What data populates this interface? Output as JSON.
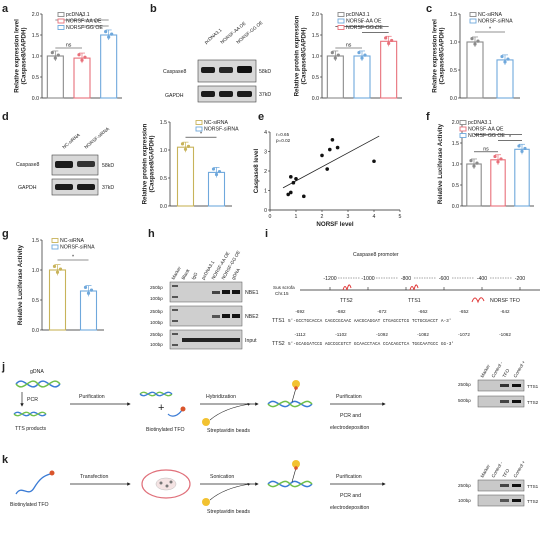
{
  "panels": {
    "a": {
      "letter": "a",
      "ylabel": "Relative expression level\n(Caspase8/GAPDH)",
      "ticks": [
        "0.0",
        "0.5",
        "1.0",
        "1.5",
        "2.0"
      ],
      "legend": [
        "pcDNA3.1",
        "NORSF-AA OE",
        "NORSF-GG OE"
      ],
      "sig": [
        "ns",
        "*",
        "*"
      ]
    },
    "b": {
      "letter": "b",
      "lanes": [
        "pcDNA3.1",
        "NORSF-AA OE",
        "NORSF-GG OE"
      ],
      "bands": [
        "Caspase8",
        "GAPDH"
      ],
      "kd": [
        "58kD",
        "37kD"
      ],
      "ylabel": "Relative protein expression\n(Caspase8/GAPDH)",
      "ticks": [
        "0.0",
        "0.5",
        "1.0",
        "1.5",
        "2.0"
      ],
      "legend": [
        "pcDNA3.1",
        "NORSF-AA OE",
        "NORSF-GG OE"
      ],
      "sig": [
        "ns",
        "*",
        "*"
      ]
    },
    "c": {
      "letter": "c",
      "ylabel": "Relative expression level\n(Caspase8/GAPDH)",
      "ticks": [
        "0.0",
        "0.5",
        "1.0",
        "1.5"
      ],
      "legend": [
        "NC-siRNA",
        "NORSF-siRNA"
      ],
      "sig": [
        "*"
      ]
    },
    "d": {
      "letter": "d",
      "lanes": [
        "NC-siRNA",
        "NORSF-siRNA"
      ],
      "bands": [
        "Caspase8",
        "GAPDH"
      ],
      "kd": [
        "58kD",
        "37kD"
      ],
      "ylabel": "Relative protein expression\n(Caspase8/GAPDH)",
      "ticks": [
        "0.0",
        "0.5",
        "1.0",
        "1.5"
      ],
      "legend": [
        "NC-siRNA",
        "NORSF-siRNA"
      ],
      "sig": [
        "*"
      ]
    },
    "e": {
      "letter": "e",
      "stats": [
        "r=0.65",
        "p=0.02"
      ],
      "xlabel": "NORSF level",
      "ylabel": "Caspase8 level",
      "xticks": [
        "0",
        "1",
        "2",
        "3",
        "4",
        "5"
      ],
      "yticks": [
        "0",
        "1",
        "2",
        "3",
        "4"
      ]
    },
    "f": {
      "letter": "f",
      "ylabel": "Relative Luciferase Activity",
      "ticks": [
        "0.0",
        "0.5",
        "1.0",
        "1.5",
        "2.0"
      ],
      "legend": [
        "pcDNA3.1",
        "NORSF-AA OE",
        "NORSF-GG OE"
      ],
      "sig": [
        "ns",
        "*",
        "*"
      ]
    },
    "g": {
      "letter": "g",
      "ylabel": "Relative Luciferase Activity",
      "ticks": [
        "0.0",
        "0.5",
        "1.0",
        "1.5"
      ],
      "legend": [
        "NC-siRNA",
        "NORSF-siRNA"
      ],
      "sig": [
        "*"
      ]
    },
    "h": {
      "letter": "h",
      "lanes": [
        "Marker",
        "Blank",
        "IgG",
        "pcDNA3.1",
        "NORSF-AA OE",
        "NORSF-GG OE",
        "gDNA"
      ],
      "markers": [
        "250bp",
        "100bp",
        "250bp",
        "100bp",
        "250bp",
        "100bp"
      ],
      "rows": [
        "NBE1",
        "NBE2",
        "Input"
      ]
    },
    "i": {
      "letter": "i",
      "title": "Caspase8 promoter",
      "chrom": "Sus scrofa\nChr.15",
      "scale": [
        "-1200",
        "-1000",
        "-800",
        "-600",
        "-400",
        "-200"
      ],
      "sites": [
        "TTS2",
        "TTS1",
        "NORSF TFO"
      ],
      "seq1_nums": [
        "-692",
        "-682",
        "-672",
        "-662",
        "-652",
        "-642"
      ],
      "seq1_label": "TTS1",
      "seq1": "5'-GCCTGCACCA CAGCCGCAAC AACGCAGGAT CTGAGCCTCG TCTGCGACCT A-3'",
      "seq2_nums": [
        "-1112",
        "-1102",
        "-1092",
        "-1082",
        "-1072",
        "-1062"
      ],
      "seq2_label": "TTS2",
      "seq2": "5'-GCAGGATCCG AGCCGCGTCT GCAACCTACA CCACAGCTCA TGGCAATGCC GG-3'"
    },
    "j": {
      "letter": "j",
      "items": [
        "gDNA",
        "PCR",
        "TTS products",
        "Purification",
        "Biotinylated TFO",
        "Hybridization",
        "Streptavidin beads",
        "Purification",
        "PCR and",
        "electrodeposition"
      ],
      "gel_lanes": [
        "Marker",
        "Control -",
        "TFO",
        "Control +"
      ],
      "gel_markers": [
        "250bp",
        "500bp"
      ],
      "gel_rows": [
        "TTS1",
        "TTS2"
      ]
    },
    "k": {
      "letter": "k",
      "items": [
        "Biotinylated TFO",
        "Transfection",
        "Sonication",
        "Streptavidin beads",
        "Purification",
        "PCR and",
        "electrodeposition"
      ],
      "gel_lanes": [
        "Marker",
        "Control -",
        "TFO",
        "Control +"
      ],
      "gel_markers": [
        "250bp",
        "100bp"
      ],
      "gel_rows": [
        "TTS1",
        "TTS2"
      ]
    }
  },
  "chart_data": [
    {
      "type": "bar",
      "panel": "a",
      "categories": [
        "pcDNA3.1",
        "NORSF-AA OE",
        "NORSF-GG OE"
      ],
      "values": [
        1.0,
        0.95,
        1.5
      ],
      "ylim": [
        0,
        2
      ],
      "colors": [
        "#8a8a8a",
        "#e8707a",
        "#6fa8dc"
      ]
    },
    {
      "type": "bar",
      "panel": "b",
      "categories": [
        "pcDNA3.1",
        "NORSF-AA OE",
        "NORSF-GG OE"
      ],
      "values": [
        1.0,
        1.0,
        1.35
      ],
      "ylim": [
        0,
        2
      ],
      "colors": [
        "#8a8a8a",
        "#6fa8dc",
        "#e8707a"
      ]
    },
    {
      "type": "bar",
      "panel": "c",
      "categories": [
        "NC-siRNA",
        "NORSF-siRNA"
      ],
      "values": [
        1.0,
        0.68
      ],
      "ylim": [
        0,
        1.5
      ],
      "colors": [
        "#8a8a8a",
        "#6fa8dc"
      ]
    },
    {
      "type": "bar",
      "panel": "d",
      "categories": [
        "NC-siRNA",
        "NORSF-siRNA"
      ],
      "values": [
        1.05,
        0.6
      ],
      "ylim": [
        0,
        1.5
      ],
      "colors": [
        "#c8b35a",
        "#6fa8dc"
      ]
    },
    {
      "type": "scatter",
      "panel": "e",
      "x": [
        0.8,
        0.9,
        1.0,
        1.3,
        0.7,
        2.0,
        2.3,
        2.6,
        2.2,
        4.0,
        2.4,
        0.8
      ],
      "y": [
        0.9,
        1.4,
        1.6,
        0.7,
        0.8,
        2.8,
        3.1,
        3.2,
        2.1,
        2.5,
        3.6,
        1.7
      ],
      "xlim": [
        0,
        5
      ],
      "ylim": [
        0,
        4
      ]
    },
    {
      "type": "bar",
      "panel": "f",
      "categories": [
        "pcDNA3.1",
        "NORSF-AA OE",
        "NORSF-GG OE"
      ],
      "values": [
        1.0,
        1.1,
        1.35
      ],
      "ylim": [
        0,
        2
      ],
      "colors": [
        "#8a8a8a",
        "#e8707a",
        "#6fa8dc"
      ]
    },
    {
      "type": "bar",
      "panel": "g",
      "categories": [
        "NC-siRNA",
        "NORSF-siRNA"
      ],
      "values": [
        1.0,
        0.65
      ],
      "ylim": [
        0,
        1.5
      ],
      "colors": [
        "#c8b35a",
        "#6fa8dc"
      ]
    }
  ]
}
